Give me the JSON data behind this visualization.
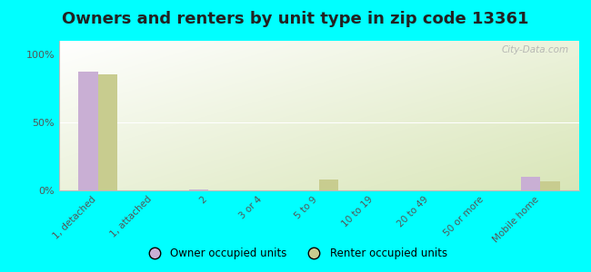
{
  "title": "Owners and renters by unit type in zip code 13361",
  "categories": [
    "1, detached",
    "1, attached",
    "2",
    "3 or 4",
    "5 to 9",
    "10 to 19",
    "20 to 49",
    "50 or more",
    "Mobile home"
  ],
  "owner_values": [
    87,
    0,
    1,
    0,
    0,
    0,
    0,
    0,
    10
  ],
  "renter_values": [
    85,
    0,
    0,
    0,
    8,
    0,
    0,
    0,
    7
  ],
  "owner_color": "#c9afd4",
  "renter_color": "#c8cc8f",
  "background_color": "#00ffff",
  "ylabel_ticks": [
    "0%",
    "50%",
    "100%"
  ],
  "ytick_vals": [
    0,
    50,
    100
  ],
  "bar_width": 0.35,
  "watermark": "City-Data.com",
  "legend_owner": "Owner occupied units",
  "legend_renter": "Renter occupied units",
  "grad_color_topleft": "#f5f8ee",
  "grad_color_bottomright": "#d8e8b8",
  "title_fontsize": 13
}
